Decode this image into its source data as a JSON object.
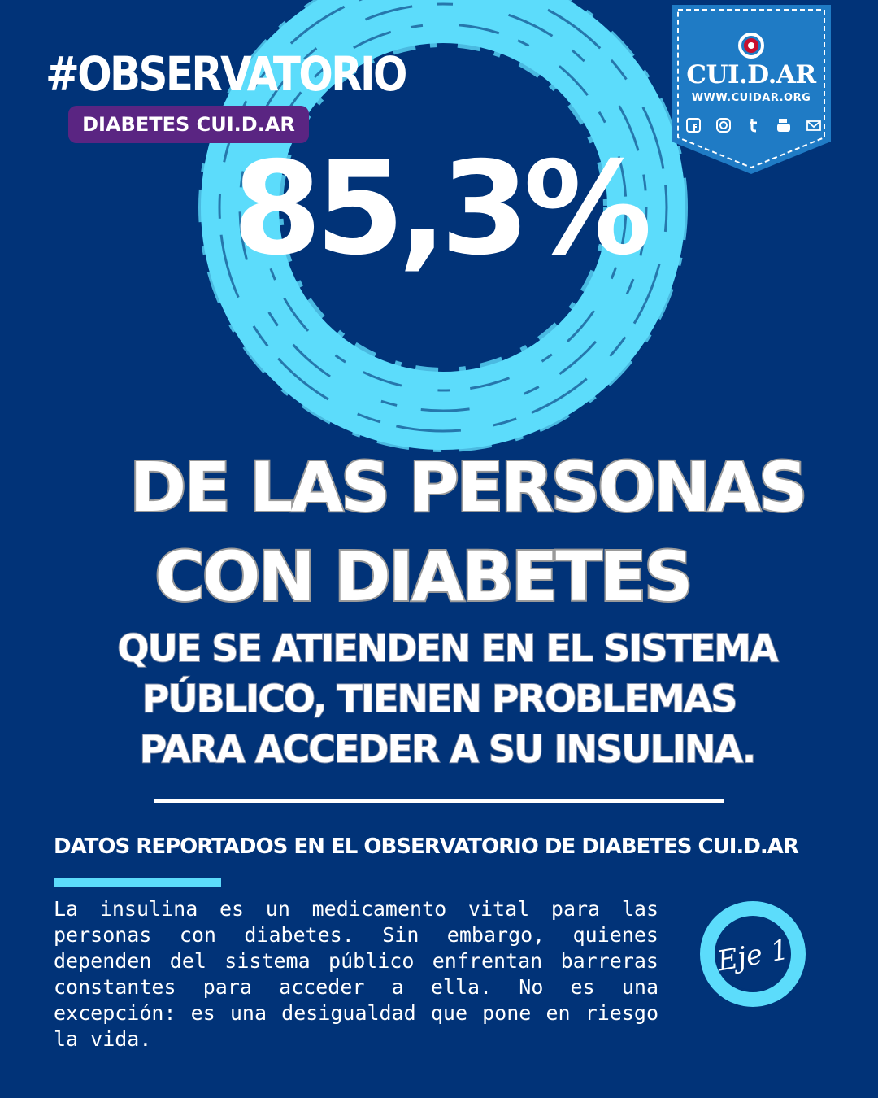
{
  "header": {
    "hashtag": "#OBSERVATORIO",
    "pill_label": "DIABETES CUI.D.AR"
  },
  "badge": {
    "brand": "CUI.D.AR",
    "url": "WWW.CUIDAR.ORG",
    "social_icons": [
      "facebook-icon",
      "instagram-icon",
      "twitter-icon",
      "youtube-icon",
      "mail-icon"
    ]
  },
  "stat": {
    "value": "85,3%"
  },
  "headline": {
    "line1": "DE LAS PERSONAS",
    "line2": "CON DIABETES",
    "sub1": "QUE SE ATIENDEN EN EL SISTEMA",
    "sub2": "PÚBLICO, TIENEN PROBLEMAS",
    "sub3": "PARA ACCEDER A SU INSULINA."
  },
  "source_line": "DATOS REPORTADOS EN EL OBSERVATORIO DE DIABETES CUI.D.AR",
  "body_text": "La insulina es un medicamento vital para las personas con diabetes. Sin embargo, quienes dependen del sistema público enfrentan barreras constantes para acceder a ella. No es una excepción: es una desigualdad que pone en riesgo la vida.",
  "eje_label": "Eje 1",
  "colors": {
    "background": "#013378",
    "ring": "#5cdcfb",
    "pill": "#5a2582",
    "badge": "#1f7bc5"
  }
}
